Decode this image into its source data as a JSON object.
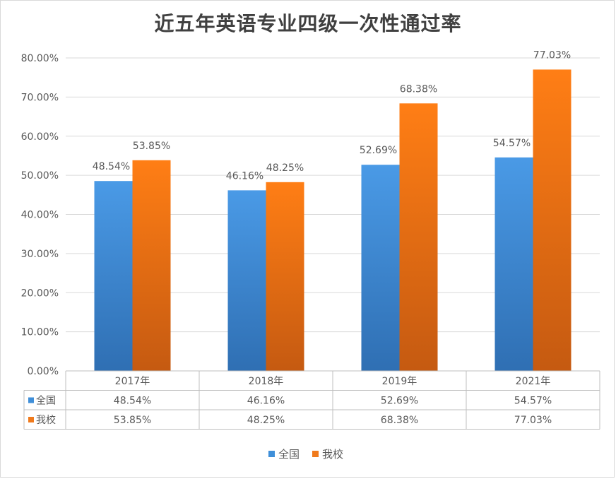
{
  "chart_data": {
    "type": "bar",
    "title": "近五年英语专业四级一次性通过率",
    "categories": [
      "2017年",
      "2018年",
      "2019年",
      "2021年"
    ],
    "series": [
      {
        "name": "全国",
        "values": [
          48.54,
          46.16,
          52.69,
          54.57
        ],
        "labels": [
          "48.54%",
          "46.16%",
          "52.69%",
          "54.57%"
        ],
        "color": "#3f8fd9"
      },
      {
        "name": "我校",
        "values": [
          53.85,
          48.25,
          68.38,
          77.03
        ],
        "labels": [
          "53.85%",
          "48.25%",
          "68.38%",
          "77.03%"
        ],
        "color": "#f07a1c"
      }
    ],
    "yticks": [
      "0.00%",
      "10.00%",
      "20.00%",
      "30.00%",
      "40.00%",
      "50.00%",
      "60.00%",
      "70.00%",
      "80.00%"
    ],
    "ylim": [
      0,
      80
    ],
    "grid": true,
    "legend_position": "bottom",
    "data_table": true
  }
}
